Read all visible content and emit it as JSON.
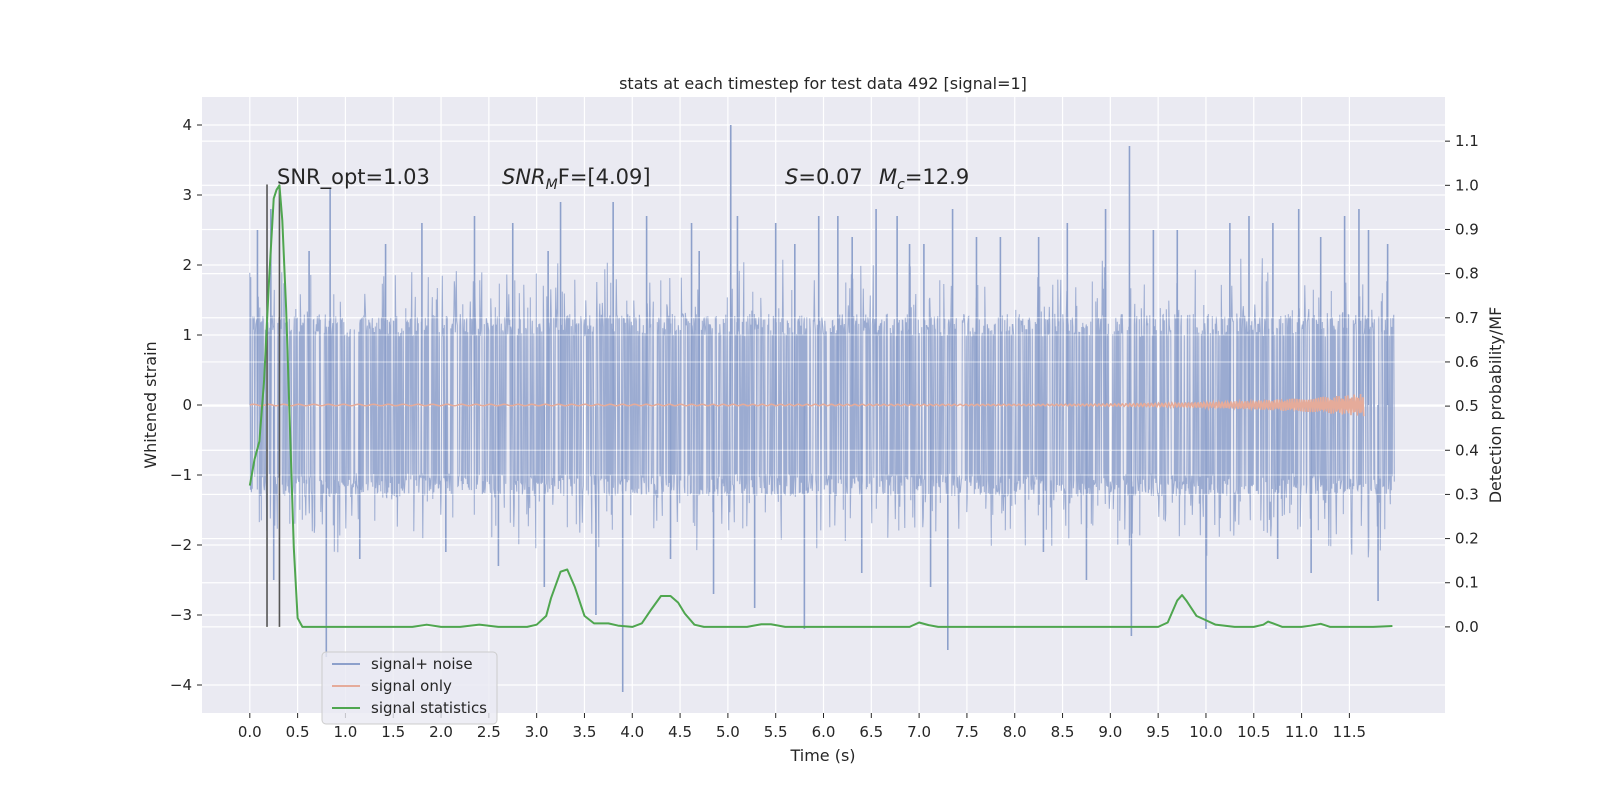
{
  "chart_data": {
    "type": "line",
    "title": "stats at each timestep for test data 492 [signal=1]",
    "xlabel": "Time (s)",
    "ylabel": "Whitened strain",
    "ylabel_right": "Detection probability/MF",
    "xlim": [
      -0.5,
      12.5
    ],
    "ylim": [
      -4.4,
      4.4
    ],
    "ylim_right": [
      -0.195,
      1.2
    ],
    "x_ticks": [
      0.0,
      0.5,
      1.0,
      1.5,
      2.0,
      2.5,
      3.0,
      3.5,
      4.0,
      4.5,
      5.0,
      5.5,
      6.0,
      6.5,
      7.0,
      7.5,
      8.0,
      8.5,
      9.0,
      9.5,
      10.0,
      10.5,
      11.0,
      11.5
    ],
    "x_tick_labels": [
      "0.0",
      "0.5",
      "1.0",
      "1.5",
      "2.0",
      "2.5",
      "3.0",
      "3.5",
      "4.0",
      "4.5",
      "5.0",
      "5.5",
      "6.0",
      "6.5",
      "7.0",
      "7.5",
      "8.0",
      "8.5",
      "9.0",
      "9.5",
      "10.0",
      "10.5",
      "11.0",
      "11.5"
    ],
    "y_ticks": [
      -4,
      -3,
      -2,
      -1,
      0,
      1,
      2,
      3,
      4
    ],
    "y_tick_labels": [
      "−4",
      "−3",
      "−2",
      "−1",
      "0",
      "1",
      "2",
      "3",
      "4"
    ],
    "y_ticks_right": [
      0.0,
      0.1,
      0.2,
      0.3,
      0.4,
      0.5,
      0.6,
      0.7,
      0.8,
      0.9,
      1.0,
      1.1
    ],
    "y_tick_labels_right": [
      "0.0",
      "0.1",
      "0.2",
      "0.3",
      "0.4",
      "0.5",
      "0.6",
      "0.7",
      "0.8",
      "0.9",
      "1.0",
      "1.1"
    ],
    "grid": true,
    "legend_position": "lower-left",
    "annotations": [
      {
        "pre": "SNR_opt=1.03",
        "var": "",
        "sub": "",
        "post": ""
      },
      {
        "pre": "",
        "var": "SNR",
        "sub": "M",
        "post": "F=[4.09]"
      },
      {
        "pre": "",
        "var": "S",
        "sub": "",
        "post": "=0.07"
      },
      {
        "pre": "",
        "var": "M",
        "sub": "c",
        "post": "=12.9"
      }
    ],
    "vlines_x": [
      0.18,
      0.31
    ],
    "series": [
      {
        "name": "signal+ noise",
        "axis": "left",
        "color": "#8da0cb",
        "kind": "noise",
        "x_start": 0.0,
        "x_end": 11.97,
        "typical_range": [
          -1.3,
          1.3
        ],
        "peaks": [
          [
            0.08,
            2.5
          ],
          [
            0.22,
            2.8
          ],
          [
            0.62,
            2.2
          ],
          [
            0.84,
            3.1
          ],
          [
            0.8,
            -3.6
          ],
          [
            0.25,
            -2.5
          ],
          [
            1.42,
            2.3
          ],
          [
            1.8,
            2.6
          ],
          [
            2.35,
            2.7
          ],
          [
            2.75,
            2.6
          ],
          [
            3.25,
            2.9
          ],
          [
            3.08,
            -2.6
          ],
          [
            3.12,
            2.2
          ],
          [
            3.62,
            -3.0
          ],
          [
            3.9,
            -4.1
          ],
          [
            3.8,
            2.9
          ],
          [
            4.15,
            2.7
          ],
          [
            4.62,
            2.6
          ],
          [
            4.7,
            2.2
          ],
          [
            4.85,
            -2.7
          ],
          [
            5.03,
            4.0
          ],
          [
            5.1,
            2.7
          ],
          [
            5.28,
            -2.9
          ],
          [
            5.5,
            2.6
          ],
          [
            5.8,
            -3.2
          ],
          [
            5.95,
            2.7
          ],
          [
            6.15,
            2.7
          ],
          [
            6.3,
            2.4
          ],
          [
            6.55,
            2.8
          ],
          [
            6.4,
            -2.4
          ],
          [
            6.77,
            2.7
          ],
          [
            7.05,
            2.3
          ],
          [
            7.12,
            -2.6
          ],
          [
            7.3,
            -3.5
          ],
          [
            7.6,
            2.4
          ],
          [
            7.35,
            2.8
          ],
          [
            7.85,
            2.4
          ],
          [
            8.25,
            2.4
          ],
          [
            8.55,
            2.6
          ],
          [
            8.75,
            -2.5
          ],
          [
            8.95,
            2.8
          ],
          [
            9.2,
            3.7
          ],
          [
            9.22,
            -3.3
          ],
          [
            9.45,
            2.5
          ],
          [
            9.7,
            2.5
          ],
          [
            10.0,
            -3.2
          ],
          [
            10.25,
            2.6
          ],
          [
            10.45,
            2.7
          ],
          [
            10.7,
            2.6
          ],
          [
            10.75,
            -2.2
          ],
          [
            10.97,
            2.8
          ],
          [
            11.1,
            -2.4
          ],
          [
            11.2,
            2.4
          ],
          [
            11.45,
            2.7
          ],
          [
            11.6,
            2.8
          ],
          [
            11.8,
            -2.8
          ],
          [
            11.9,
            2.3
          ],
          [
            11.7,
            2.5
          ],
          [
            1.15,
            -2.2
          ],
          [
            2.05,
            -2.1
          ],
          [
            2.6,
            -2.3
          ],
          [
            4.4,
            -2.2
          ],
          [
            8.3,
            -2.1
          ],
          [
            6.9,
            2.3
          ],
          [
            5.7,
            2.3
          ]
        ]
      },
      {
        "name": "signal only",
        "axis": "left",
        "color": "#e5ab9a",
        "kind": "chirp",
        "x_start": 0.0,
        "x_end": 11.65,
        "amplitude_end": 0.15
      },
      {
        "name": "signal statistics",
        "axis": "right",
        "color": "#4fa64f",
        "kind": "line",
        "x": [
          0.0,
          0.05,
          0.1,
          0.15,
          0.2,
          0.25,
          0.28,
          0.31,
          0.34,
          0.38,
          0.42,
          0.46,
          0.5,
          0.55,
          0.7,
          1.0,
          1.5,
          1.7,
          1.85,
          2.0,
          2.2,
          2.4,
          2.6,
          2.9,
          3.0,
          3.1,
          3.15,
          3.25,
          3.32,
          3.4,
          3.5,
          3.6,
          3.75,
          3.85,
          4.0,
          4.1,
          4.2,
          4.3,
          4.4,
          4.48,
          4.55,
          4.65,
          4.75,
          4.9,
          5.2,
          5.35,
          5.45,
          5.6,
          6.0,
          6.5,
          6.9,
          7.0,
          7.1,
          7.2,
          7.4,
          7.6,
          8.0,
          8.5,
          9.0,
          9.5,
          9.6,
          9.7,
          9.75,
          9.8,
          9.9,
          10.0,
          10.1,
          10.3,
          10.5,
          10.6,
          10.65,
          10.7,
          10.8,
          11.0,
          11.1,
          11.2,
          11.3,
          11.5,
          11.75,
          11.95
        ],
        "y": [
          0.32,
          0.38,
          0.42,
          0.56,
          0.78,
          0.97,
          0.99,
          1.0,
          0.92,
          0.72,
          0.45,
          0.18,
          0.02,
          0.0,
          0.0,
          0.0,
          0.0,
          0.0,
          0.005,
          0.0,
          0.0,
          0.005,
          0.0,
          0.0,
          0.005,
          0.025,
          0.065,
          0.125,
          0.13,
          0.09,
          0.025,
          0.008,
          0.008,
          0.003,
          0.0,
          0.008,
          0.04,
          0.07,
          0.07,
          0.055,
          0.03,
          0.005,
          0.0,
          0.0,
          0.0,
          0.006,
          0.006,
          0.0,
          0.0,
          0.0,
          0.0,
          0.01,
          0.004,
          0.0,
          0.0,
          0.0,
          0.0,
          0.0,
          0.0,
          0.0,
          0.01,
          0.06,
          0.072,
          0.058,
          0.025,
          0.015,
          0.005,
          0.0,
          0.0,
          0.005,
          0.012,
          0.008,
          0.0,
          0.0,
          0.003,
          0.007,
          0.0,
          0.0,
          0.0,
          0.002
        ]
      }
    ]
  }
}
